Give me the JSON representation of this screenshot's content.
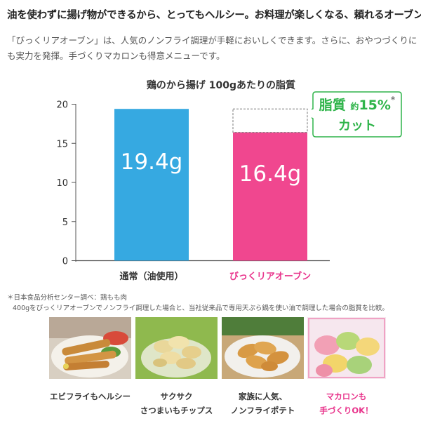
{
  "headline": "油を使わずに揚げ物ができるから、とってもヘルシー。お料理が楽しくなる、頼れるオーブン。",
  "lead": "「びっくリアオーブン」は、人気のノンフライ調理が手軽においしくできます。さらに、おやつづくりにも実力を発揮。手づくりマカロンも得意メニューです。",
  "callout": {
    "word": "脂質",
    "approx": "約",
    "percent": "15%",
    "mark": "*",
    "cut": "カット"
  },
  "notes": {
    "line1": "＊日本食品分析センター調べ：鶏もも肉",
    "line2": "400gをびっくリアオーブンでノンフライ調理した場合と、当社従来品で専用天ぷら鍋を使い油で調理した場合の脂質を比較。"
  },
  "photos": [
    {
      "caption1": "エビフライもヘルシー",
      "caption2": "",
      "icon": "fried-shrimp"
    },
    {
      "caption1": "サクサク",
      "caption2": "さつまいもチップス",
      "icon": "sweet-potato-chips"
    },
    {
      "caption1": "家族に人気、",
      "caption2": "ノンフライポテト",
      "icon": "non-fry-potato"
    },
    {
      "caption1": "マカロンも",
      "caption2": "手づくりOK！",
      "icon": "macarons"
    }
  ],
  "chart_data": {
    "type": "bar",
    "title": "鶏のから揚げ 100gあたりの脂質",
    "categories": [
      "通常（油使用）",
      "びっくリアオーブン"
    ],
    "values": [
      19.4,
      16.4
    ],
    "value_labels": [
      "19.4g",
      "16.4g"
    ],
    "colors": [
      "#36a9e1",
      "#f0478f"
    ],
    "category_label_colors": [
      "#333333",
      "#e8338b"
    ],
    "yticks": [
      "0",
      "5",
      "10",
      "15",
      "20"
    ],
    "ylim": [
      0,
      20
    ],
    "reference_value": 19.4,
    "grid": false
  }
}
